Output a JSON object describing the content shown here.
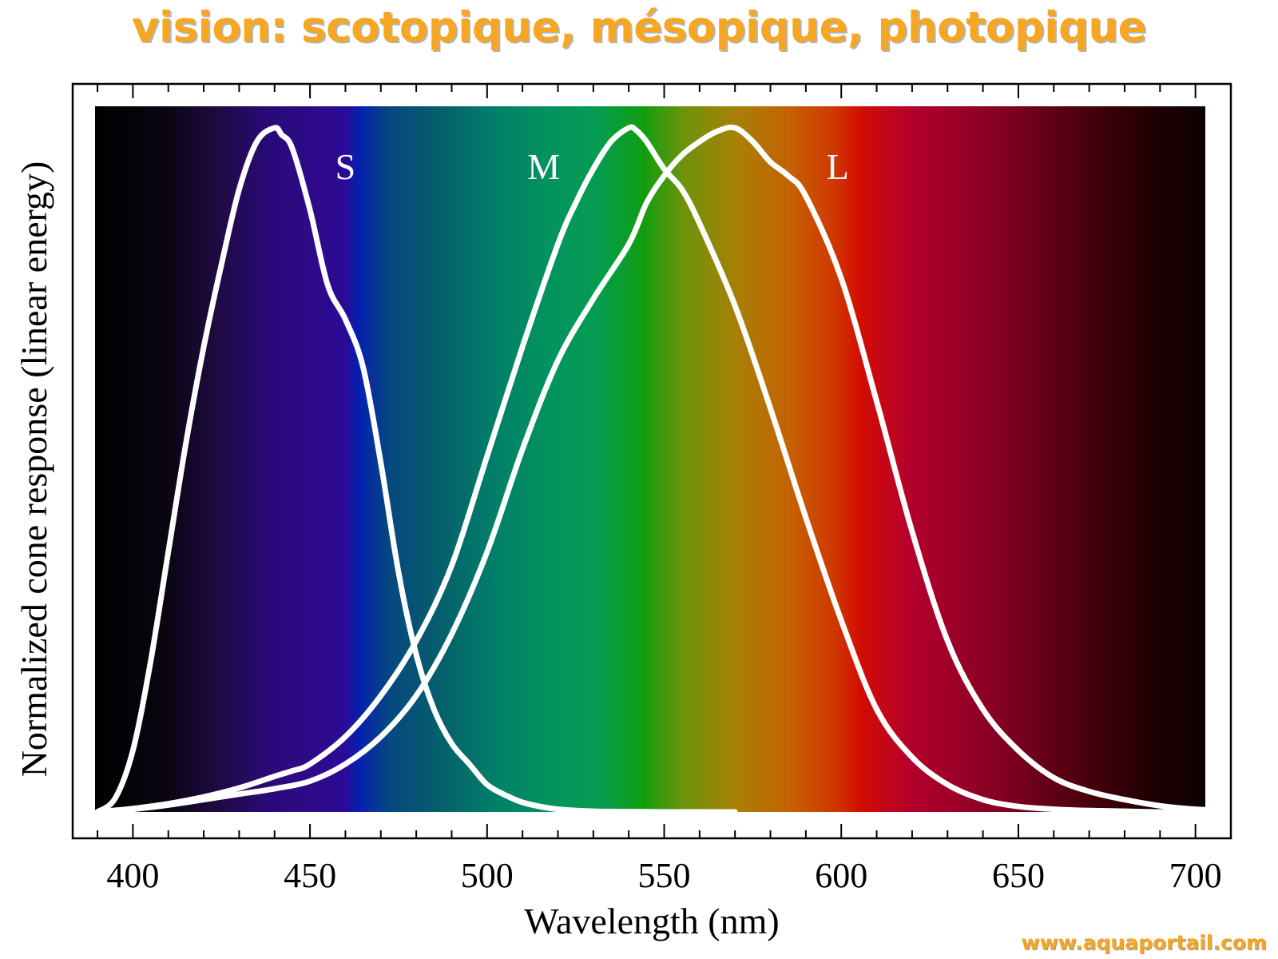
{
  "title": "vision: scotopique, mésopique, photopique",
  "watermark": "www.aquaportail.com",
  "chart_data": {
    "type": "line",
    "title": "vision: scotopique, mésopique, photopique",
    "xlabel": "Wavelength (nm)",
    "ylabel": "Normalized cone response (linear energy)",
    "xlim": [
      383,
      710
    ],
    "ylim": [
      0,
      1.0
    ],
    "xticks": [
      400,
      450,
      500,
      550,
      600,
      650,
      700
    ],
    "xtick_labels": [
      "400",
      "450",
      "500",
      "550",
      "600",
      "650",
      "700"
    ],
    "grid": false,
    "legend": "none",
    "background": "visible spectrum gradient 390–710 nm",
    "curve_color": "#ffffff",
    "spectrum_stops": [
      {
        "nm": 390,
        "color": "#000000"
      },
      {
        "nm": 410,
        "color": "#0a0510"
      },
      {
        "nm": 425,
        "color": "#1e0a40"
      },
      {
        "nm": 440,
        "color": "#2a0a78"
      },
      {
        "nm": 455,
        "color": "#2e0a8c"
      },
      {
        "nm": 462,
        "color": "#2a0a96"
      },
      {
        "nm": 466,
        "color": "#0520b0"
      },
      {
        "nm": 475,
        "color": "#06487f"
      },
      {
        "nm": 490,
        "color": "#05606b"
      },
      {
        "nm": 505,
        "color": "#027f6a"
      },
      {
        "nm": 520,
        "color": "#039260"
      },
      {
        "nm": 535,
        "color": "#049c50"
      },
      {
        "nm": 548,
        "color": "#109e10"
      },
      {
        "nm": 560,
        "color": "#70920a"
      },
      {
        "nm": 575,
        "color": "#a88006"
      },
      {
        "nm": 590,
        "color": "#c46204"
      },
      {
        "nm": 603,
        "color": "#d03800"
      },
      {
        "nm": 611,
        "color": "#d20c04"
      },
      {
        "nm": 625,
        "color": "#b4002c"
      },
      {
        "nm": 650,
        "color": "#860024"
      },
      {
        "nm": 675,
        "color": "#4a000c"
      },
      {
        "nm": 695,
        "color": "#1e0004"
      },
      {
        "nm": 710,
        "color": "#0e0002"
      }
    ],
    "series": [
      {
        "name": "S",
        "x": [
          390,
          395,
          400,
          405,
          410,
          415,
          420,
          425,
          430,
          435,
          440,
          442,
          445,
          450,
          455,
          460,
          465,
          470,
          475,
          480,
          485,
          490,
          495,
          500,
          505,
          510,
          515,
          520,
          530,
          540,
          550,
          560,
          570
        ],
        "values": [
          0.0,
          0.02,
          0.09,
          0.22,
          0.38,
          0.54,
          0.68,
          0.8,
          0.91,
          0.98,
          1.0,
          0.99,
          0.97,
          0.88,
          0.77,
          0.72,
          0.65,
          0.51,
          0.35,
          0.23,
          0.15,
          0.1,
          0.07,
          0.04,
          0.025,
          0.014,
          0.008,
          0.004,
          0.001,
          0.0005,
          0.0,
          0.0,
          0.0
        ]
      },
      {
        "name": "M",
        "x": [
          390,
          400,
          410,
          420,
          430,
          440,
          445,
          450,
          460,
          470,
          480,
          490,
          500,
          510,
          520,
          525,
          530,
          535,
          540,
          542,
          545,
          550,
          555,
          560,
          570,
          580,
          590,
          600,
          610,
          620,
          630,
          640,
          650,
          660,
          670,
          680,
          690,
          700,
          710
        ],
        "values": [
          0.0,
          0.005,
          0.012,
          0.022,
          0.035,
          0.052,
          0.06,
          0.07,
          0.11,
          0.17,
          0.25,
          0.36,
          0.52,
          0.68,
          0.83,
          0.89,
          0.94,
          0.98,
          1.0,
          0.997,
          0.98,
          0.94,
          0.91,
          0.86,
          0.74,
          0.59,
          0.43,
          0.28,
          0.15,
          0.08,
          0.04,
          0.018,
          0.008,
          0.004,
          0.002,
          0.001,
          0.0,
          0.0,
          0.0
        ]
      },
      {
        "name": "L",
        "x": [
          390,
          400,
          410,
          420,
          430,
          440,
          450,
          460,
          470,
          480,
          490,
          500,
          510,
          520,
          530,
          540,
          545,
          550,
          555,
          560,
          565,
          570,
          575,
          580,
          585,
          590,
          600,
          610,
          620,
          630,
          640,
          650,
          660,
          670,
          680,
          690,
          700,
          710
        ],
        "values": [
          0.0,
          0.004,
          0.01,
          0.018,
          0.026,
          0.034,
          0.045,
          0.07,
          0.11,
          0.17,
          0.26,
          0.38,
          0.53,
          0.66,
          0.75,
          0.83,
          0.89,
          0.93,
          0.96,
          0.98,
          0.995,
          1.0,
          0.98,
          0.95,
          0.93,
          0.9,
          0.78,
          0.6,
          0.41,
          0.25,
          0.15,
          0.09,
          0.05,
          0.03,
          0.018,
          0.009,
          0.004,
          0.002
        ]
      }
    ]
  }
}
